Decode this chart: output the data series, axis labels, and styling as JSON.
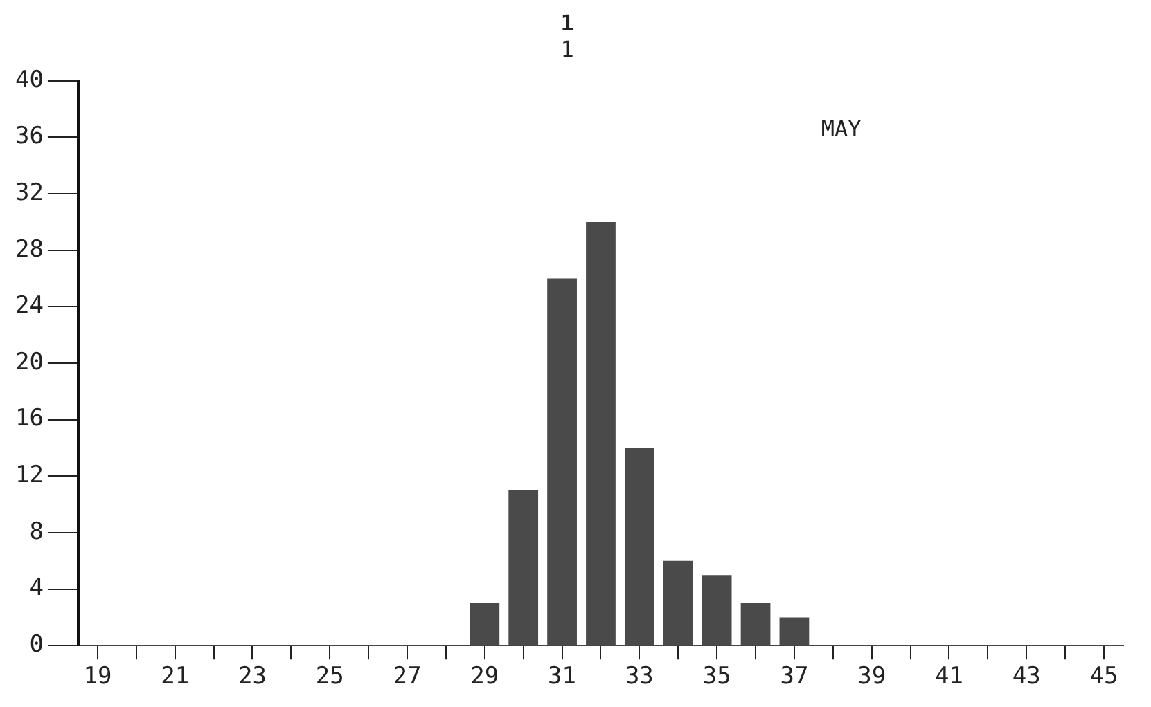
{
  "chart_data": {
    "type": "bar",
    "title": "1",
    "subtitle": "1",
    "annotations": [
      "MAY"
    ],
    "categories": [
      "19",
      null,
      "21",
      null,
      "23",
      null,
      "25",
      null,
      "27",
      null,
      "29",
      null,
      "31",
      null,
      "33",
      null,
      "35",
      null,
      "37",
      null,
      "39",
      null,
      "41",
      null,
      "43",
      null,
      "45"
    ],
    "values": [
      null,
      null,
      null,
      null,
      null,
      null,
      null,
      null,
      null,
      null,
      3,
      11,
      26,
      30,
      14,
      6,
      5,
      3,
      2,
      null,
      null,
      null,
      null,
      null,
      null,
      null,
      null
    ],
    "color": "#4a4a4a",
    "ylim": [
      0,
      40
    ],
    "yticks": [
      0,
      4,
      8,
      12,
      16,
      20,
      24,
      28,
      32,
      36,
      40
    ],
    "grid": false
  }
}
